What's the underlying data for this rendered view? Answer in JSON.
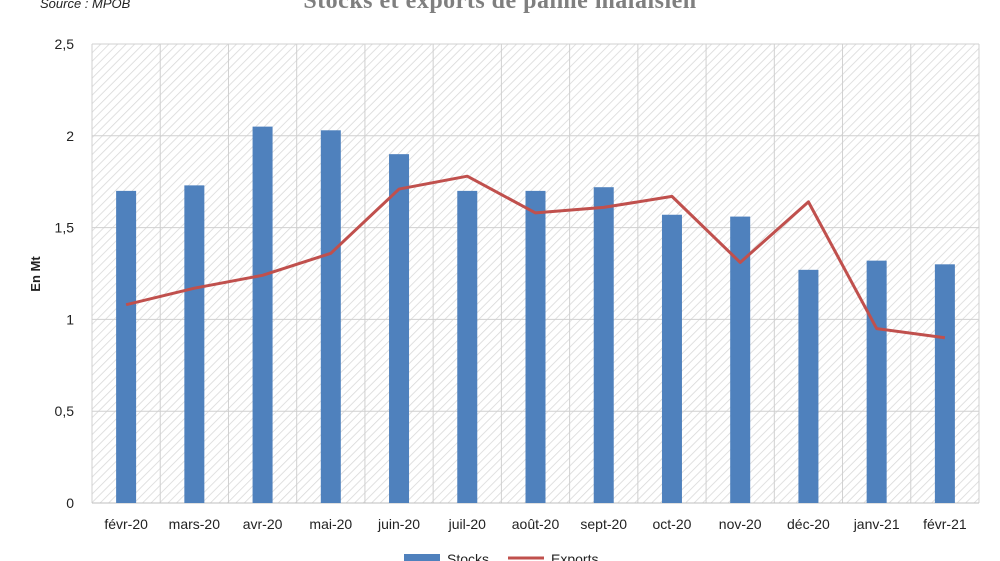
{
  "source": "Source : MPOB",
  "chart_data": {
    "type": "bar",
    "title": "Stocks et exports de palme malaisien",
    "ylabel": "En Mt",
    "xlabel": "",
    "categories": [
      "févr-20",
      "mars-20",
      "avr-20",
      "mai-20",
      "juin-20",
      "juil-20",
      "août-20",
      "sept-20",
      "oct-20",
      "nov-20",
      "déc-20",
      "janv-21",
      "févr-21"
    ],
    "ylim": [
      0,
      2.5
    ],
    "yticks": [
      "0",
      "0,5",
      "1",
      "1,5",
      "2",
      "2,5"
    ],
    "ytick_values": [
      0,
      0.5,
      1,
      1.5,
      2,
      2.5
    ],
    "grid": true,
    "legend_position": "bottom",
    "series": [
      {
        "name": "Stocks",
        "type": "bar",
        "color": "#4f81bd",
        "values": [
          1.7,
          1.73,
          2.05,
          2.03,
          1.9,
          1.7,
          1.7,
          1.72,
          1.57,
          1.56,
          1.27,
          1.32,
          1.3
        ]
      },
      {
        "name": "Exports",
        "type": "line",
        "color": "#c0504d",
        "values": [
          1.08,
          1.17,
          1.24,
          1.36,
          1.71,
          1.78,
          1.58,
          1.61,
          1.67,
          1.31,
          1.64,
          0.95,
          0.9
        ]
      }
    ]
  }
}
